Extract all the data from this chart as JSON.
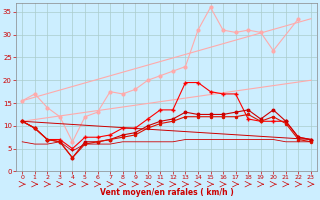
{
  "background_color": "#cceeff",
  "grid_color": "#aacccc",
  "xlabel": "Vent moyen/en rafales ( km/h )",
  "xlabel_color": "#cc0000",
  "tick_color": "#cc0000",
  "xlim": [
    -0.5,
    23.5
  ],
  "ylim": [
    0,
    37
  ],
  "yticks": [
    0,
    5,
    10,
    15,
    20,
    25,
    30,
    35
  ],
  "xticks": [
    0,
    1,
    2,
    3,
    4,
    5,
    6,
    7,
    8,
    9,
    10,
    11,
    12,
    13,
    14,
    15,
    16,
    17,
    18,
    19,
    20,
    21,
    22,
    23
  ],
  "series": [
    {
      "x": [
        0,
        1,
        2,
        3,
        4,
        5,
        6,
        7,
        8,
        9,
        10,
        11,
        12,
        13,
        14,
        15,
        16,
        17,
        18,
        19,
        20,
        22
      ],
      "y": [
        15.5,
        17.0,
        14.0,
        12.0,
        6.5,
        12.0,
        13.0,
        17.5,
        17.0,
        18.0,
        20.0,
        21.0,
        22.0,
        23.0,
        31.0,
        36.0,
        31.0,
        30.5,
        31.0,
        30.5,
        26.5,
        33.5
      ],
      "color": "#ffaaaa",
      "linewidth": 0.8,
      "marker": "o",
      "markersize": 2.0
    },
    {
      "x": [
        0,
        23
      ],
      "y": [
        15.5,
        33.5
      ],
      "color": "#ffaaaa",
      "linewidth": 0.8,
      "marker": null,
      "markersize": 0
    },
    {
      "x": [
        0,
        23
      ],
      "y": [
        11.0,
        20.0
      ],
      "color": "#ffaaaa",
      "linewidth": 0.8,
      "marker": null,
      "markersize": 0
    },
    {
      "x": [
        0,
        1,
        2,
        3,
        4,
        5,
        6,
        7,
        8,
        9,
        10,
        11,
        12,
        13,
        14,
        15,
        16,
        17,
        18,
        19,
        20,
        21,
        22,
        23
      ],
      "y": [
        11.0,
        9.5,
        7.0,
        7.0,
        5.0,
        7.5,
        7.5,
        8.0,
        9.5,
        9.5,
        11.5,
        13.5,
        13.5,
        19.5,
        19.5,
        17.5,
        17.0,
        17.0,
        11.5,
        11.0,
        11.0,
        11.0,
        7.5,
        7.0
      ],
      "color": "#ff0000",
      "linewidth": 0.8,
      "marker": "+",
      "markersize": 3.5
    },
    {
      "x": [
        0,
        1,
        2,
        3,
        4,
        5,
        6,
        7,
        8,
        9,
        10,
        11,
        12,
        13,
        14,
        15,
        16,
        17,
        18,
        19,
        20,
        21,
        22,
        23
      ],
      "y": [
        11.0,
        9.5,
        7.0,
        6.5,
        3.0,
        6.5,
        6.5,
        7.0,
        8.0,
        8.5,
        10.0,
        11.0,
        11.5,
        13.0,
        12.5,
        12.5,
        12.5,
        13.0,
        13.5,
        11.5,
        13.5,
        11.0,
        7.5,
        7.0
      ],
      "color": "#cc0000",
      "linewidth": 0.8,
      "marker": "o",
      "markersize": 1.8
    },
    {
      "x": [
        0,
        1,
        2,
        3,
        4,
        5,
        6,
        7,
        8,
        9,
        10,
        11,
        12,
        13,
        14,
        15,
        16,
        17,
        18,
        19,
        20,
        21,
        22,
        23
      ],
      "y": [
        11.0,
        9.5,
        7.0,
        6.5,
        3.0,
        6.0,
        6.5,
        7.0,
        7.5,
        8.0,
        9.5,
        10.5,
        11.0,
        12.0,
        12.0,
        12.0,
        12.0,
        12.0,
        12.5,
        11.0,
        12.0,
        10.5,
        7.0,
        6.5
      ],
      "color": "#dd1100",
      "linewidth": 0.8,
      "marker": "o",
      "markersize": 1.5
    },
    {
      "x": [
        0,
        23
      ],
      "y": [
        11.0,
        7.0
      ],
      "color": "#cc0000",
      "linewidth": 0.7,
      "marker": null,
      "markersize": 0
    },
    {
      "x": [
        0,
        1,
        2,
        3,
        4,
        5,
        6,
        7,
        8,
        9,
        10,
        11,
        12,
        13,
        14,
        15,
        16,
        17,
        18,
        19,
        20,
        21,
        22,
        23
      ],
      "y": [
        6.5,
        6.0,
        6.0,
        6.5,
        4.5,
        6.0,
        6.0,
        6.0,
        6.5,
        6.5,
        6.5,
        6.5,
        6.5,
        7.0,
        7.0,
        7.0,
        7.0,
        7.0,
        7.0,
        7.0,
        7.0,
        6.5,
        6.5,
        6.5
      ],
      "color": "#cc0000",
      "linewidth": 0.6,
      "marker": null,
      "markersize": 0
    }
  ]
}
